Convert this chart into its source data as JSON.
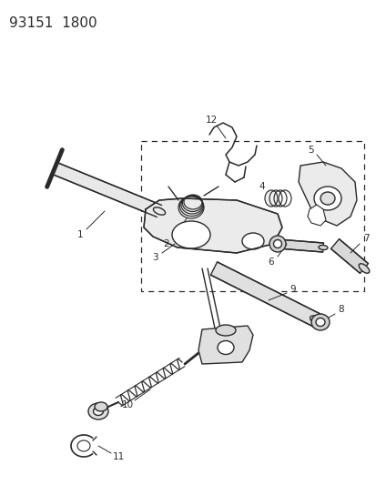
{
  "title": "93151  1800",
  "title_fontsize": 11,
  "bg_color": "#ffffff",
  "line_color": "#2a2a2a",
  "figsize": [
    4.14,
    5.33
  ],
  "dpi": 100,
  "parts": {
    "1_label": "1",
    "2_label": "2",
    "3_label": "3",
    "4_label": "4",
    "5_label": "5",
    "6_label": "6",
    "7_label": "7",
    "8_label": "8",
    "9_label": "9",
    "10_label": "10",
    "11_label": "11",
    "12_label": "12"
  }
}
